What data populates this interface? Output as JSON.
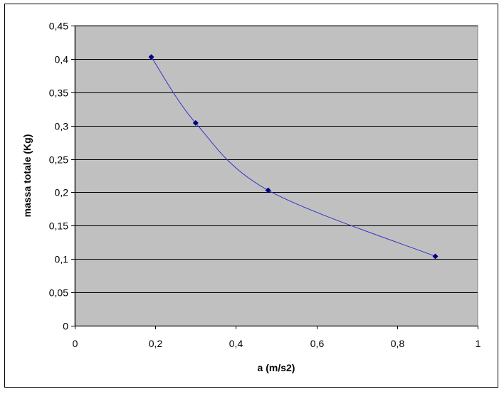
{
  "chart_data": {
    "type": "scatter",
    "title": "",
    "xlabel": "a (m/s2)",
    "ylabel": "massa totale (Kg)",
    "xlim": [
      0,
      1
    ],
    "ylim": [
      0,
      0.45
    ],
    "x_ticks": [
      "0",
      "0,2",
      "0,4",
      "0,6",
      "0,8",
      "1"
    ],
    "y_ticks": [
      "0",
      "0,05",
      "0,1",
      "0,15",
      "0,2",
      "0,25",
      "0,3",
      "0,35",
      "0,4",
      "0,45"
    ],
    "grid": "horizontal",
    "smoothed_line": true,
    "series": [
      {
        "x": [
          0.19,
          0.3,
          0.48,
          0.895
        ],
        "y": [
          0.403,
          0.304,
          0.203,
          0.104
        ]
      }
    ],
    "colors": {
      "plot_background": "#c0c0c0",
      "series_line": "#3333cc",
      "series_marker": "#000080",
      "gridline": "#000000"
    }
  }
}
